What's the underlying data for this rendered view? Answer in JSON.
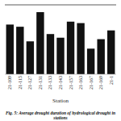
{
  "chart_data": {
    "type": "bar",
    "title": "Fig. 5: Average drought duration of hydrological drought in stations",
    "x_label": "Station",
    "categories": [
      "21-109",
      "21-115",
      "21-127",
      "21-131",
      "21-133",
      "21-143",
      "21-157",
      "21-163",
      "21-167",
      "21-169",
      "21-1"
    ],
    "values": [
      68,
      65,
      45,
      85,
      55,
      50,
      72,
      70,
      35,
      48,
      60
    ],
    "color": "#111111",
    "ylim": [
      0,
      95
    ],
    "grid": false,
    "tick_labels": "x"
  }
}
